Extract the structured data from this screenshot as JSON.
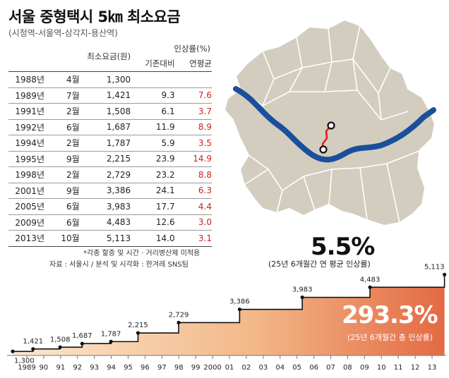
{
  "title": "서울 중형택시 5㎞ 최소요금",
  "subtitle": "(시청역-서울역-삼각지-용산역)",
  "table": {
    "col_fare": "최소요금(원)",
    "col_increase": "인상률(%)",
    "col_prev": "기존대비",
    "col_avg": "연평균",
    "rows": [
      {
        "year": "1988년",
        "month": "4월",
        "fare": "1,300",
        "prev": "",
        "avg": ""
      },
      {
        "year": "1989년",
        "month": "7월",
        "fare": "1,421",
        "prev": "9.3",
        "avg": "7.6"
      },
      {
        "year": "1991년",
        "month": "2월",
        "fare": "1,508",
        "prev": "6.1",
        "avg": "3.7"
      },
      {
        "year": "1992년",
        "month": "6월",
        "fare": "1,687",
        "prev": "11.9",
        "avg": "8.9"
      },
      {
        "year": "1994년",
        "month": "2월",
        "fare": "1,787",
        "prev": "5.9",
        "avg": "3.5"
      },
      {
        "year": "1995년",
        "month": "9월",
        "fare": "2,215",
        "prev": "23.9",
        "avg": "14.9"
      },
      {
        "year": "1998년",
        "month": "2월",
        "fare": "2,729",
        "prev": "23.2",
        "avg": "8.8"
      },
      {
        "year": "2001년",
        "month": "9월",
        "fare": "3,386",
        "prev": "24.1",
        "avg": "6.3"
      },
      {
        "year": "2005년",
        "month": "6월",
        "fare": "3,983",
        "prev": "17.7",
        "avg": "4.4"
      },
      {
        "year": "2009년",
        "month": "6월",
        "fare": "4,483",
        "prev": "12.6",
        "avg": "3.0"
      },
      {
        "year": "2013년",
        "month": "10월",
        "fare": "5,113",
        "prev": "14.0",
        "avg": "3.1"
      }
    ]
  },
  "notes": {
    "line1": "*각종 할증 및 시간 · 거리병산제 미적용",
    "line2": "자료 : 서울시 / 분석 및 시각화 : 한겨레 SNS팀"
  },
  "callouts": {
    "annual_value": "5.5%",
    "annual_label": "(25년 6개월간 연 평균 인상률)",
    "total_value": "293.3%",
    "total_label": "(25년 6개월간 총 인상률)"
  },
  "colors": {
    "river": "#1a4f9c",
    "map_fill": "#d3cdbf",
    "route": "#dd2222",
    "area_light": "#fbe7cf",
    "area_dark": "#e46a43",
    "step_line": "#111111"
  },
  "chart_data": {
    "type": "area",
    "x_tick_labels": [
      "1989",
      "90",
      "91",
      "92",
      "93",
      "94",
      "95",
      "96",
      "97",
      "98",
      "99",
      "2000",
      "01",
      "02",
      "03",
      "04",
      "05",
      "06",
      "07",
      "08",
      "09",
      "10",
      "11",
      "12",
      "13"
    ],
    "xlim": [
      1988.3,
      2013.9
    ],
    "ylim": [
      1100,
      5300
    ],
    "points": [
      {
        "x": 1988.3,
        "y": 1300,
        "label": "1,300"
      },
      {
        "x": 1989.5,
        "y": 1421,
        "label": "1,421"
      },
      {
        "x": 1991.1,
        "y": 1508,
        "label": "1,508"
      },
      {
        "x": 1992.4,
        "y": 1687,
        "label": "1,687"
      },
      {
        "x": 1994.1,
        "y": 1787,
        "label": "1,787"
      },
      {
        "x": 1995.7,
        "y": 2215,
        "label": "2,215"
      },
      {
        "x": 1998.1,
        "y": 2729,
        "label": "2,729"
      },
      {
        "x": 2001.7,
        "y": 3386,
        "label": "3,386"
      },
      {
        "x": 2005.4,
        "y": 3983,
        "label": "3,983"
      },
      {
        "x": 2009.4,
        "y": 4483,
        "label": "4,483"
      },
      {
        "x": 2013.8,
        "y": 5113,
        "label": "5,113"
      }
    ]
  }
}
